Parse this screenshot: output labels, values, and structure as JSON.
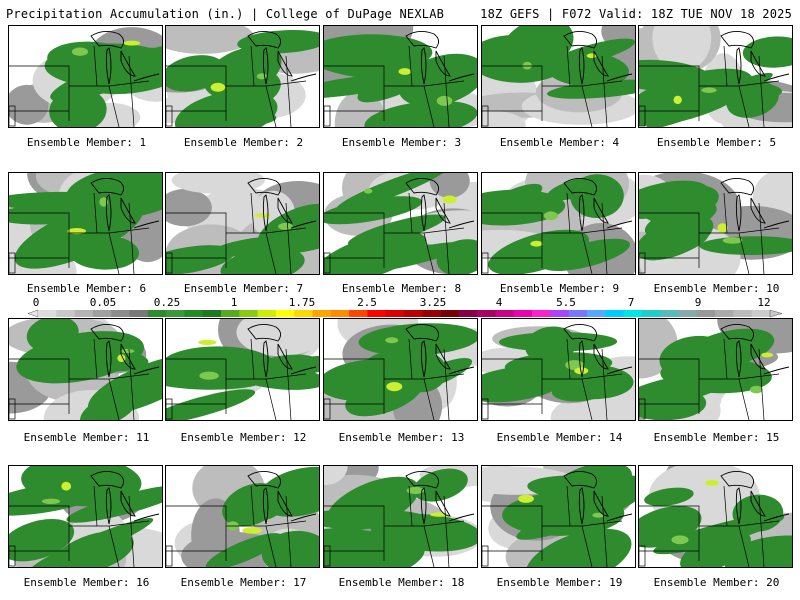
{
  "header": {
    "left": "Precipitation Accumulation (in.) | College of DuPage NEXLAB",
    "right": "18Z GEFS | F072 Valid: 18Z TUE NOV 18 2025"
  },
  "panels": [
    {
      "label": "Ensemble Member: 1"
    },
    {
      "label": "Ensemble Member: 2"
    },
    {
      "label": "Ensemble Member: 3"
    },
    {
      "label": "Ensemble Member: 4"
    },
    {
      "label": "Ensemble Member: 5"
    },
    {
      "label": "Ensemble Member: 6"
    },
    {
      "label": "Ensemble Member: 7"
    },
    {
      "label": "Ensemble Member: 8"
    },
    {
      "label": "Ensemble Member: 9"
    },
    {
      "label": "Ensemble Member: 10"
    },
    {
      "label": "Ensemble Member: 11"
    },
    {
      "label": "Ensemble Member: 12"
    },
    {
      "label": "Ensemble Member: 13"
    },
    {
      "label": "Ensemble Member: 14"
    },
    {
      "label": "Ensemble Member: 15"
    },
    {
      "label": "Ensemble Member: 16"
    },
    {
      "label": "Ensemble Member: 17"
    },
    {
      "label": "Ensemble Member: 18"
    },
    {
      "label": "Ensemble Member: 19"
    },
    {
      "label": "Ensemble Member: 20"
    }
  ],
  "colorbar": {
    "ticks": [
      "0",
      "0.05",
      "0.25",
      "1",
      "1.75",
      "2.5",
      "3.25",
      "4",
      "5.5",
      "7",
      "9",
      "12"
    ],
    "colors": [
      "#dcdcdc",
      "#c8c8c8",
      "#b4b4b4",
      "#a0a0a0",
      "#8c8c8c",
      "#787878",
      "#2e8b2e",
      "#3a9a3a",
      "#228b22",
      "#1f7a1f",
      "#55aa22",
      "#88cc11",
      "#ccee00",
      "#ffff00",
      "#ffd700",
      "#ffa500",
      "#ff8c00",
      "#ff4500",
      "#ff0000",
      "#dd0000",
      "#bb0000",
      "#990000",
      "#770000",
      "#880044",
      "#aa0066",
      "#cc0088",
      "#ee00aa",
      "#ff22cc",
      "#aa44ff",
      "#7777ff",
      "#55aaff",
      "#00ccff",
      "#00e5e5",
      "#22cccc",
      "#55bbbb",
      "#88aaaa",
      "#999999",
      "#aaaaaa",
      "#bbbbbb",
      "#cccccc"
    ]
  },
  "map_colors": {
    "green": "#2e8b2e",
    "light_green": "#7ec850",
    "yellow_green": "#ccee33",
    "gray_light": "#d9d9d9",
    "gray_mid": "#bdbdbd",
    "gray_dark": "#9a9a9a",
    "lines": "#000000"
  }
}
